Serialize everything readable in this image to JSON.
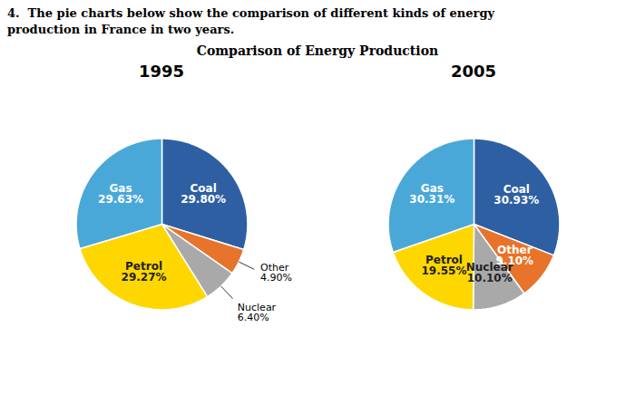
{
  "title": "Comparison of Energy Production",
  "annotations": [
    "4.  The pie charts below show the comparison of different kinds of energy",
    "production in France in two years."
  ],
  "chart_data": [
    {
      "type": "pie",
      "title": "1995",
      "categories": [
        "Coal",
        "Other",
        "Nuclear",
        "Petrol",
        "Gas"
      ],
      "values": [
        29.8,
        4.9,
        6.4,
        29.27,
        29.63
      ],
      "value_labels": [
        "29.80%",
        "4.90%",
        "6.40%",
        "29.27%",
        "29.63%"
      ],
      "colors": [
        "#2E5FA3",
        "#E8732A",
        "#A9A9A9",
        "#FFD700",
        "#4AA8D8"
      ],
      "data_labels": true
    },
    {
      "type": "pie",
      "title": "2005",
      "categories": [
        "Coal",
        "Other",
        "Nuclear",
        "Petrol",
        "Gas"
      ],
      "values": [
        30.93,
        9.1,
        10.1,
        19.55,
        30.31
      ],
      "value_labels": [
        "30.93%",
        "9.10%",
        "10.10%",
        "19.55%",
        "30.31%"
      ],
      "colors": [
        "#2E5FA3",
        "#E8732A",
        "#A9A9A9",
        "#FFD700",
        "#4AA8D8"
      ],
      "data_labels": true
    }
  ]
}
